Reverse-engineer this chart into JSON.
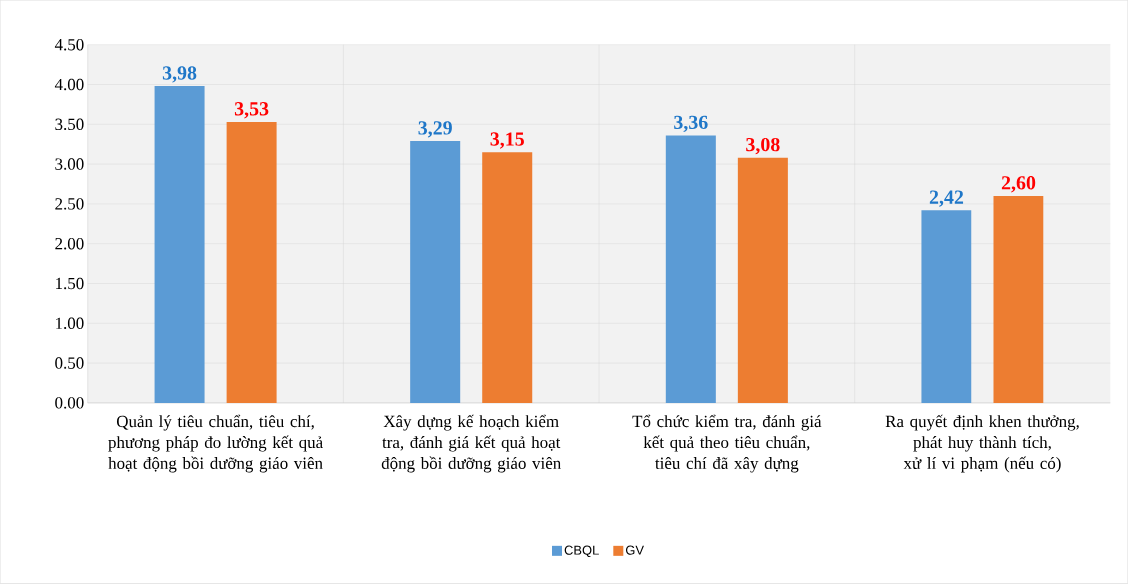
{
  "chart_data": {
    "type": "bar",
    "categories": [
      "Quản lý tiêu chuẩn, tiêu chí, phương pháp đo lường kết quả hoạt động bồi dưỡng giáo viên",
      "Xây dựng kế hoạch kiểm tra, đánh giá kết quả hoạt động bồi dưỡng giáo viên",
      "Tổ chức kiểm tra, đánh giá kết quả theo tiêu chuẩn, tiêu chí đã xây dựng",
      "Ra quyết định khen thưởng, phát huy thành tích, xử lí vi phạm (nếu có)"
    ],
    "series": [
      {
        "name": "CBQL",
        "color": "#5b9bd5",
        "values": [
          3.98,
          3.29,
          3.36,
          2.42
        ],
        "value_labels": [
          "3,98",
          "3,29",
          "3,36",
          "2,42"
        ]
      },
      {
        "name": "GV",
        "color": "#ed7d31",
        "values": [
          3.53,
          3.15,
          3.08,
          2.6
        ],
        "value_labels": [
          "3,53",
          "3,15",
          "3,08",
          "2,60"
        ]
      }
    ],
    "ylim": [
      0,
      4.5
    ],
    "yticks": [
      {
        "value": 0,
        "label": "0.00"
      },
      {
        "value": 0.5,
        "label": "0.50"
      },
      {
        "value": 1,
        "label": "1.00"
      },
      {
        "value": 1.5,
        "label": "1.50"
      },
      {
        "value": 2,
        "label": "2.00"
      },
      {
        "value": 2.5,
        "label": "2.50"
      },
      {
        "value": 3,
        "label": "3.00"
      },
      {
        "value": 3.5,
        "label": "3.50"
      },
      {
        "value": 4,
        "label": "4.00"
      },
      {
        "value": 4.5,
        "label": "4.50"
      }
    ],
    "grid": true,
    "legend": "bottom"
  }
}
